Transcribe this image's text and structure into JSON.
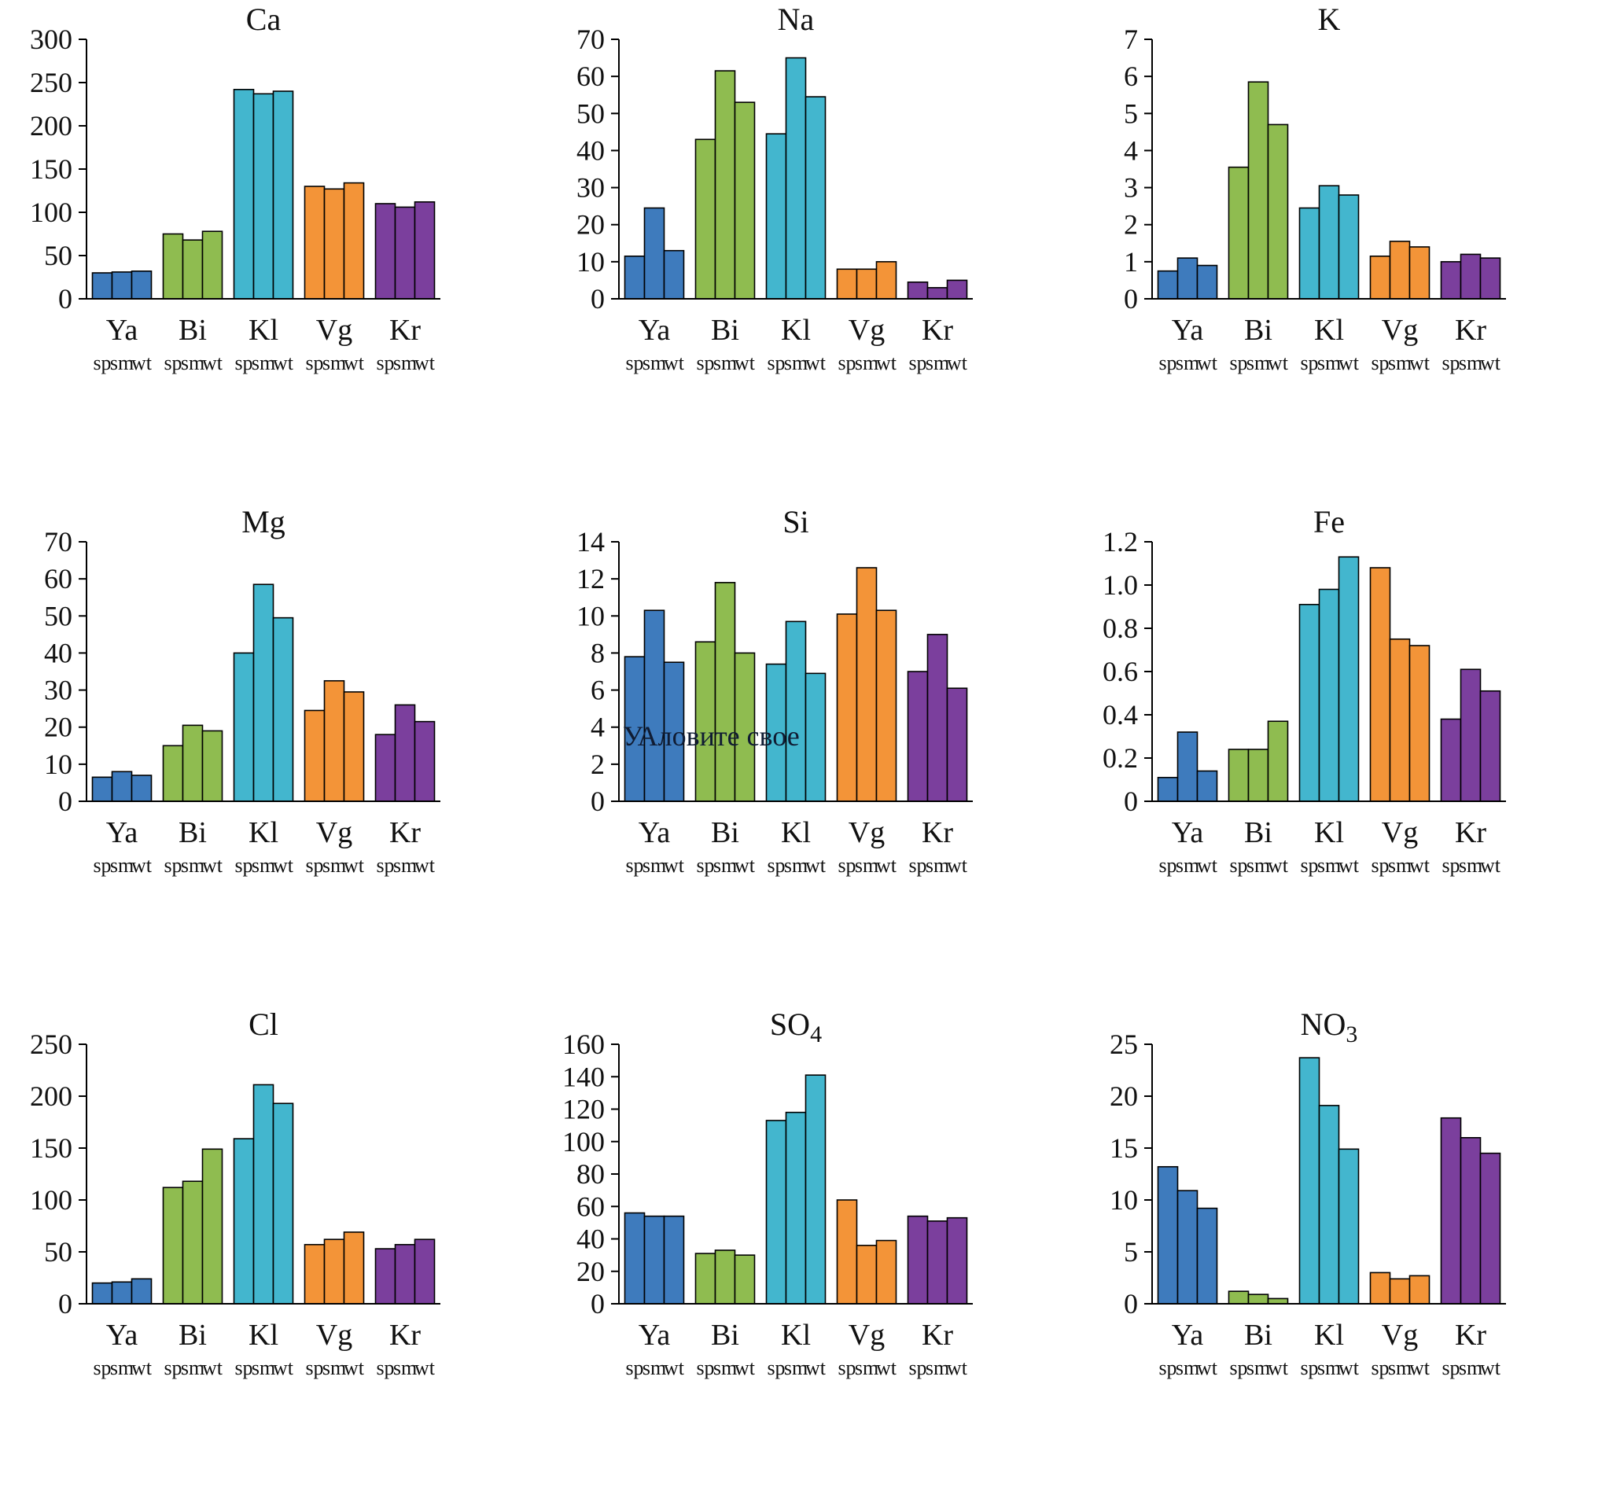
{
  "figure": {
    "categories": [
      "Ya",
      "Bi",
      "Kl",
      "Vg",
      "Kr"
    ],
    "subcategories": [
      "sp",
      "sm",
      "wt"
    ],
    "group_colors": [
      "#3E7BBD",
      "#8FBC50",
      "#43B6CE",
      "#F39438",
      "#7B3F9D"
    ],
    "bar_edge_color": "#000000",
    "watermark_text": "УАловите свое"
  },
  "chart_data": [
    {
      "type": "bar",
      "title": "Ca",
      "title_sub": "",
      "xlabel": "",
      "ylabel": "",
      "ylim": [
        0,
        300
      ],
      "ytick_labels": [
        "0",
        "50",
        "100",
        "150",
        "200",
        "250",
        "300"
      ],
      "categories": [
        "Ya",
        "Bi",
        "Kl",
        "Vg",
        "Kr"
      ],
      "subcategories": [
        "sp",
        "sm",
        "wt"
      ],
      "values": {
        "Ya": [
          30,
          31,
          32
        ],
        "Bi": [
          75,
          68,
          78
        ],
        "Kl": [
          242,
          237,
          240
        ],
        "Vg": [
          130,
          127,
          134
        ],
        "Kr": [
          110,
          106,
          112
        ]
      }
    },
    {
      "type": "bar",
      "title": "Na",
      "title_sub": "",
      "xlabel": "",
      "ylabel": "",
      "ylim": [
        0,
        70
      ],
      "ytick_labels": [
        "0",
        "10",
        "20",
        "30",
        "40",
        "50",
        "60",
        "70"
      ],
      "categories": [
        "Ya",
        "Bi",
        "Kl",
        "Vg",
        "Kr"
      ],
      "subcategories": [
        "sp",
        "sm",
        "wt"
      ],
      "values": {
        "Ya": [
          11.5,
          24.5,
          13
        ],
        "Bi": [
          43,
          61.5,
          53
        ],
        "Kl": [
          44.5,
          65,
          54.5
        ],
        "Vg": [
          8,
          8,
          10
        ],
        "Kr": [
          4.5,
          3,
          5
        ]
      }
    },
    {
      "type": "bar",
      "title": "K",
      "title_sub": "",
      "xlabel": "",
      "ylabel": "",
      "ylim": [
        0,
        7
      ],
      "ytick_labels": [
        "0",
        "1",
        "2",
        "3",
        "4",
        "5",
        "6",
        "7"
      ],
      "categories": [
        "Ya",
        "Bi",
        "Kl",
        "Vg",
        "Kr"
      ],
      "subcategories": [
        "sp",
        "sm",
        "wt"
      ],
      "values": {
        "Ya": [
          0.75,
          1.1,
          0.9
        ],
        "Bi": [
          3.55,
          5.85,
          4.7
        ],
        "Kl": [
          2.45,
          3.05,
          2.8
        ],
        "Vg": [
          1.15,
          1.55,
          1.4
        ],
        "Kr": [
          1.0,
          1.2,
          1.1
        ]
      }
    },
    {
      "type": "bar",
      "title": "Mg",
      "title_sub": "",
      "xlabel": "",
      "ylabel": "",
      "ylim": [
        0,
        70
      ],
      "ytick_labels": [
        "0",
        "10",
        "20",
        "30",
        "40",
        "50",
        "60",
        "70"
      ],
      "categories": [
        "Ya",
        "Bi",
        "Kl",
        "Vg",
        "Kr"
      ],
      "subcategories": [
        "sp",
        "sm",
        "wt"
      ],
      "values": {
        "Ya": [
          6.5,
          8,
          7
        ],
        "Bi": [
          15,
          20.5,
          19
        ],
        "Kl": [
          40,
          58.5,
          49.5
        ],
        "Vg": [
          24.5,
          32.5,
          29.5
        ],
        "Kr": [
          18,
          26,
          21.5
        ]
      }
    },
    {
      "type": "bar",
      "title": "Si",
      "title_sub": "",
      "xlabel": "",
      "ylabel": "",
      "ylim": [
        0,
        14
      ],
      "ytick_labels": [
        "0",
        "2",
        "4",
        "6",
        "8",
        "10",
        "12",
        "14"
      ],
      "categories": [
        "Ya",
        "Bi",
        "Kl",
        "Vg",
        "Kr"
      ],
      "subcategories": [
        "sp",
        "sm",
        "wt"
      ],
      "values": {
        "Ya": [
          7.8,
          10.3,
          7.5
        ],
        "Bi": [
          8.6,
          11.8,
          8.0
        ],
        "Kl": [
          7.4,
          9.7,
          6.9
        ],
        "Vg": [
          10.1,
          12.6,
          10.3
        ],
        "Kr": [
          7.0,
          9.0,
          6.1
        ]
      },
      "watermark": "УАловите свое"
    },
    {
      "type": "bar",
      "title": "Fe",
      "title_sub": "",
      "xlabel": "",
      "ylabel": "",
      "ylim": [
        0,
        1.2
      ],
      "ytick_labels": [
        "0",
        "0.2",
        "0.4",
        "0.6",
        "0.8",
        "1.0",
        "1.2"
      ],
      "categories": [
        "Ya",
        "Bi",
        "Kl",
        "Vg",
        "Kr"
      ],
      "subcategories": [
        "sp",
        "sm",
        "wt"
      ],
      "values": {
        "Ya": [
          0.11,
          0.32,
          0.14
        ],
        "Bi": [
          0.24,
          0.24,
          0.37
        ],
        "Kl": [
          0.91,
          0.98,
          1.13
        ],
        "Vg": [
          1.08,
          0.75,
          0.72
        ],
        "Kr": [
          0.38,
          0.61,
          0.51
        ]
      }
    },
    {
      "type": "bar",
      "title": "Cl",
      "title_sub": "",
      "xlabel": "",
      "ylabel": "",
      "ylim": [
        0,
        250
      ],
      "ytick_labels": [
        "0",
        "50",
        "100",
        "150",
        "200",
        "250"
      ],
      "categories": [
        "Ya",
        "Bi",
        "Kl",
        "Vg",
        "Kr"
      ],
      "subcategories": [
        "sp",
        "sm",
        "wt"
      ],
      "values": {
        "Ya": [
          20,
          21,
          24
        ],
        "Bi": [
          112,
          118,
          149
        ],
        "Kl": [
          159,
          211,
          193
        ],
        "Vg": [
          57,
          62,
          69
        ],
        "Kr": [
          53,
          57,
          62
        ]
      }
    },
    {
      "type": "bar",
      "title": "SO",
      "title_sub": "4",
      "xlabel": "",
      "ylabel": "",
      "ylim": [
        0,
        160
      ],
      "ytick_labels": [
        "0",
        "20",
        "40",
        "60",
        "80",
        "100",
        "120",
        "140",
        "160"
      ],
      "categories": [
        "Ya",
        "Bi",
        "Kl",
        "Vg",
        "Kr"
      ],
      "subcategories": [
        "sp",
        "sm",
        "wt"
      ],
      "values": {
        "Ya": [
          56,
          54,
          54
        ],
        "Bi": [
          31,
          33,
          30
        ],
        "Kl": [
          113,
          118,
          141
        ],
        "Vg": [
          64,
          36,
          39
        ],
        "Kr": [
          54,
          51,
          53
        ]
      }
    },
    {
      "type": "bar",
      "title": "NO",
      "title_sub": "3",
      "xlabel": "",
      "ylabel": "",
      "ylim": [
        0,
        25
      ],
      "ytick_labels": [
        "0",
        "5",
        "10",
        "15",
        "20",
        "25"
      ],
      "categories": [
        "Ya",
        "Bi",
        "Kl",
        "Vg",
        "Kr"
      ],
      "subcategories": [
        "sp",
        "sm",
        "wt"
      ],
      "values": {
        "Ya": [
          13.2,
          10.9,
          9.2
        ],
        "Bi": [
          1.2,
          0.9,
          0.5
        ],
        "Kl": [
          23.7,
          19.1,
          14.9
        ],
        "Vg": [
          3.0,
          2.4,
          2.7
        ],
        "Kr": [
          17.9,
          16.0,
          14.5
        ]
      }
    }
  ]
}
